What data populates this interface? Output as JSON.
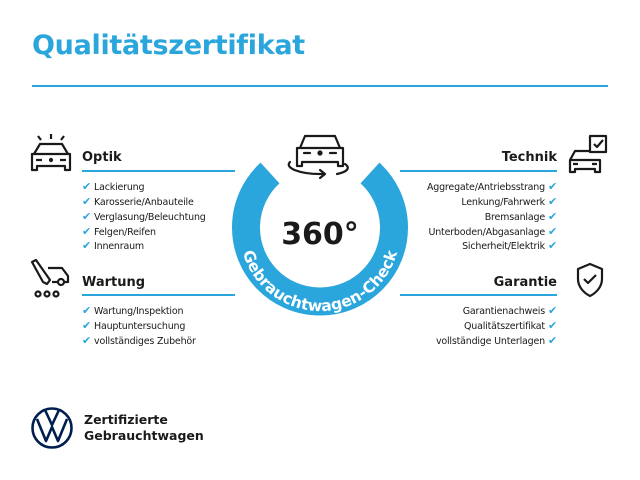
{
  "title": "Qualitätszertifikat",
  "accent": "#2aa6dd",
  "badge": {
    "big": "360°",
    "arc_text": "Gebrauchtwagen-Check"
  },
  "sections": {
    "optik": {
      "heading": "Optik",
      "icon": "car-lights-icon",
      "items": [
        "Lackierung",
        "Karosserie/Anbauteile",
        "Verglasung/Beleuchtung",
        "Felgen/Reifen",
        "Innenraum"
      ]
    },
    "wartung": {
      "heading": "Wartung",
      "icon": "service-car-wrench-icon",
      "items": [
        "Wartung/Inspektion",
        "Hauptuntersuchung",
        "vollständiges Zubehör"
      ]
    },
    "technik": {
      "heading": "Technik",
      "icon": "car-checklist-icon",
      "items": [
        "Aggregate/Antriebsstrang",
        "Lenkung/Fahrwerk",
        "Bremsanlage",
        "Unterboden/Abgasanlage",
        "Sicherheit/Elektrik"
      ]
    },
    "garantie": {
      "heading": "Garantie",
      "icon": "shield-check-icon",
      "items": [
        "Garantienachweis",
        "Qualitätszertifikat",
        "vollständige Unterlagen"
      ]
    }
  },
  "check_mark": "✔",
  "footer": {
    "line1": "Zertifizierte",
    "line2": "Gebrauchtwagen",
    "logo": "VW"
  }
}
